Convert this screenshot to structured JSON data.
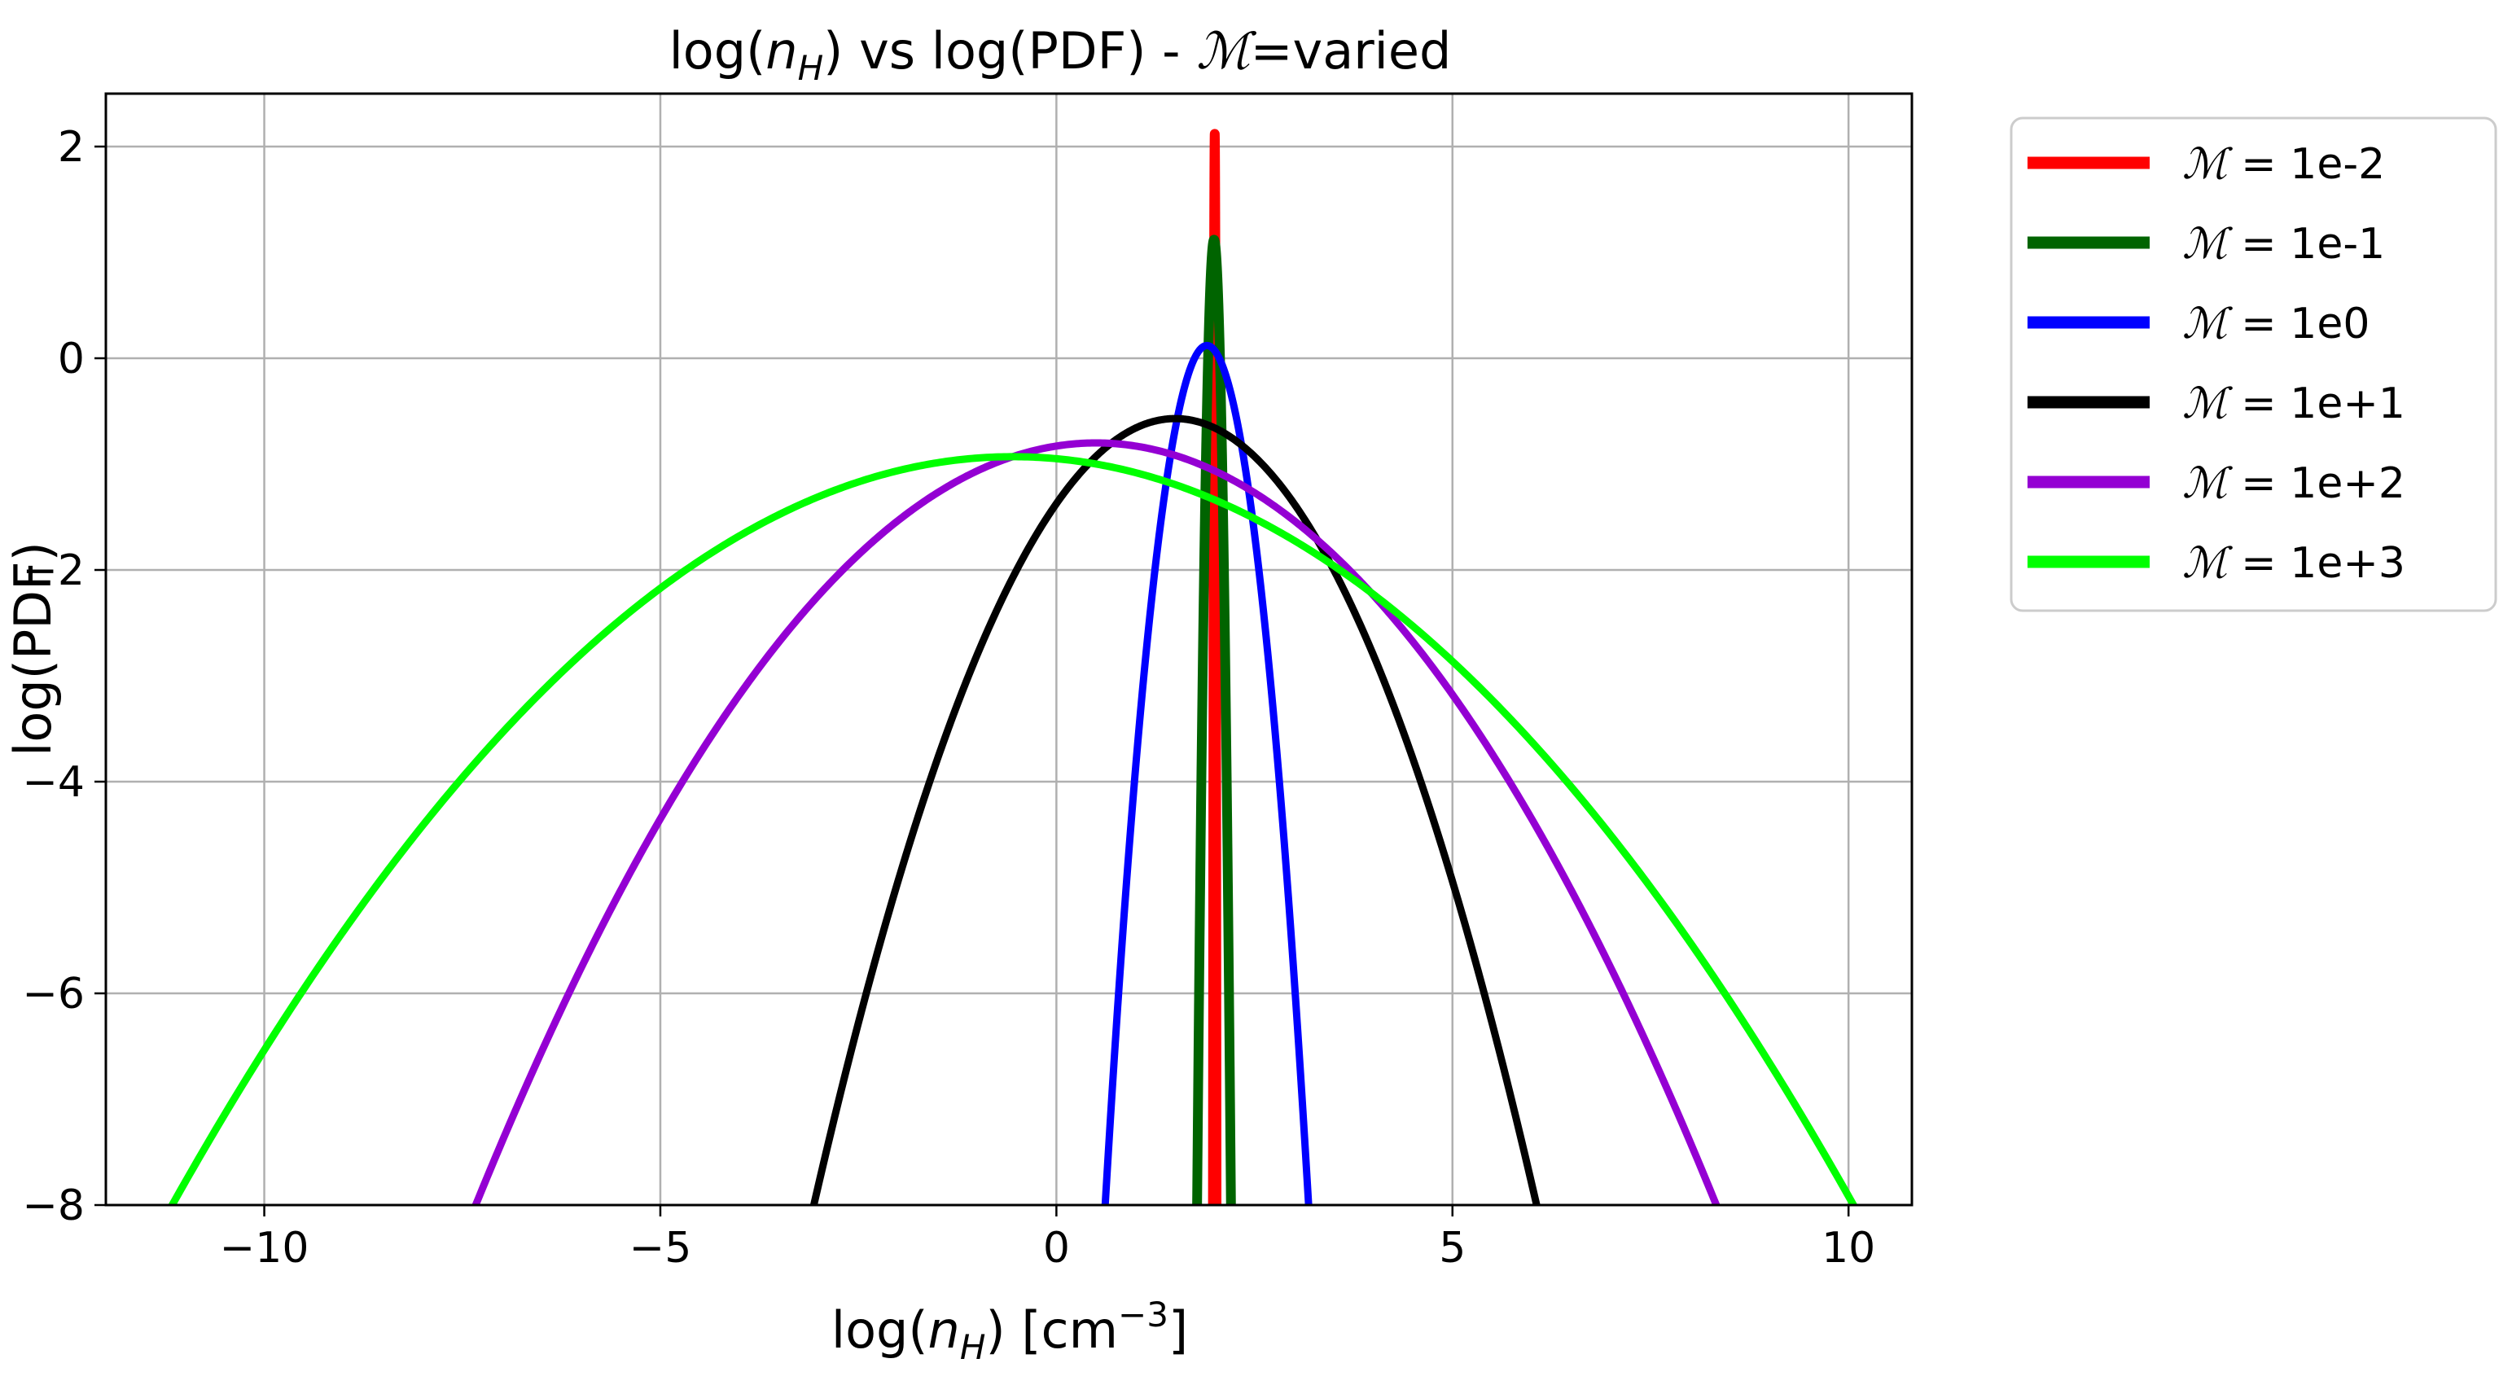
{
  "chart_data": {
    "type": "line",
    "title": {
      "prefix": "log(",
      "var": "n",
      "sub": "H",
      "middle": ") vs log(PDF) - ",
      "script_m": "ℳ",
      "suffix": "=varied"
    },
    "xlabel": {
      "prefix": "log(",
      "var": "n",
      "sub": "H",
      "middle": ") [cm",
      "sup": "−3",
      "suffix": "]"
    },
    "ylabel": "log(PDF)",
    "xlim": [
      -12,
      10.8
    ],
    "ylim": [
      -8,
      2.5
    ],
    "xticks": [
      -10,
      -5,
      0,
      5,
      10
    ],
    "xtick_labels": [
      "−10",
      "−5",
      "0",
      "5",
      "10"
    ],
    "yticks": [
      2,
      0,
      -2,
      -4,
      -6,
      -8
    ],
    "ytick_labels": [
      "2",
      "0",
      "−2",
      "−4",
      "−6",
      "−8"
    ],
    "grid": true,
    "legend_position": "outside-right-top",
    "x_model": "log-normal PDF in log(nH): log(PDF) = log10 of Gaussian in ln(nH) with mean nH 100 cm^-3, rendered for x in [-12, 10.8]",
    "series": [
      {
        "name": "ℳ = 1e-2",
        "legend_m": "ℳ",
        "legend_rest": " = 1e-2",
        "color": "#ff0000",
        "peak_x": 1.999,
        "peak_y": 2.12,
        "sigma_dex": 0.0033
      },
      {
        "name": "ℳ = 1e-1",
        "legend_m": "ℳ",
        "legend_rest": " = 1e-1",
        "color": "#006400",
        "peak_x": 1.99,
        "peak_y": 1.12,
        "sigma_dex": 0.033
      },
      {
        "name": "ℳ = 1e0",
        "legend_m": "ℳ",
        "legend_rest": " = 1e0",
        "color": "#0000ff",
        "peak_x": 1.9,
        "peak_y": 0.12,
        "sigma_dex": 0.21
      },
      {
        "name": "ℳ = 1e+1",
        "legend_m": "ℳ",
        "legend_rest": " = 1e+1",
        "color": "#000000",
        "peak_x": 1.5,
        "peak_y": -0.57,
        "sigma_dex": 0.78
      },
      {
        "name": "ℳ = 1e+2",
        "legend_m": "ℳ",
        "legend_rest": " = 1e+2",
        "color": "#9400d3",
        "peak_x": 0.5,
        "peak_y": -0.8,
        "sigma_dex": 1.36
      },
      {
        "name": "ℳ = 1e+3",
        "legend_m": "ℳ",
        "legend_rest": " = 1e+3",
        "color": "#00ff00",
        "peak_x": -0.55,
        "peak_y": -0.93,
        "sigma_dex": 1.86
      }
    ]
  }
}
